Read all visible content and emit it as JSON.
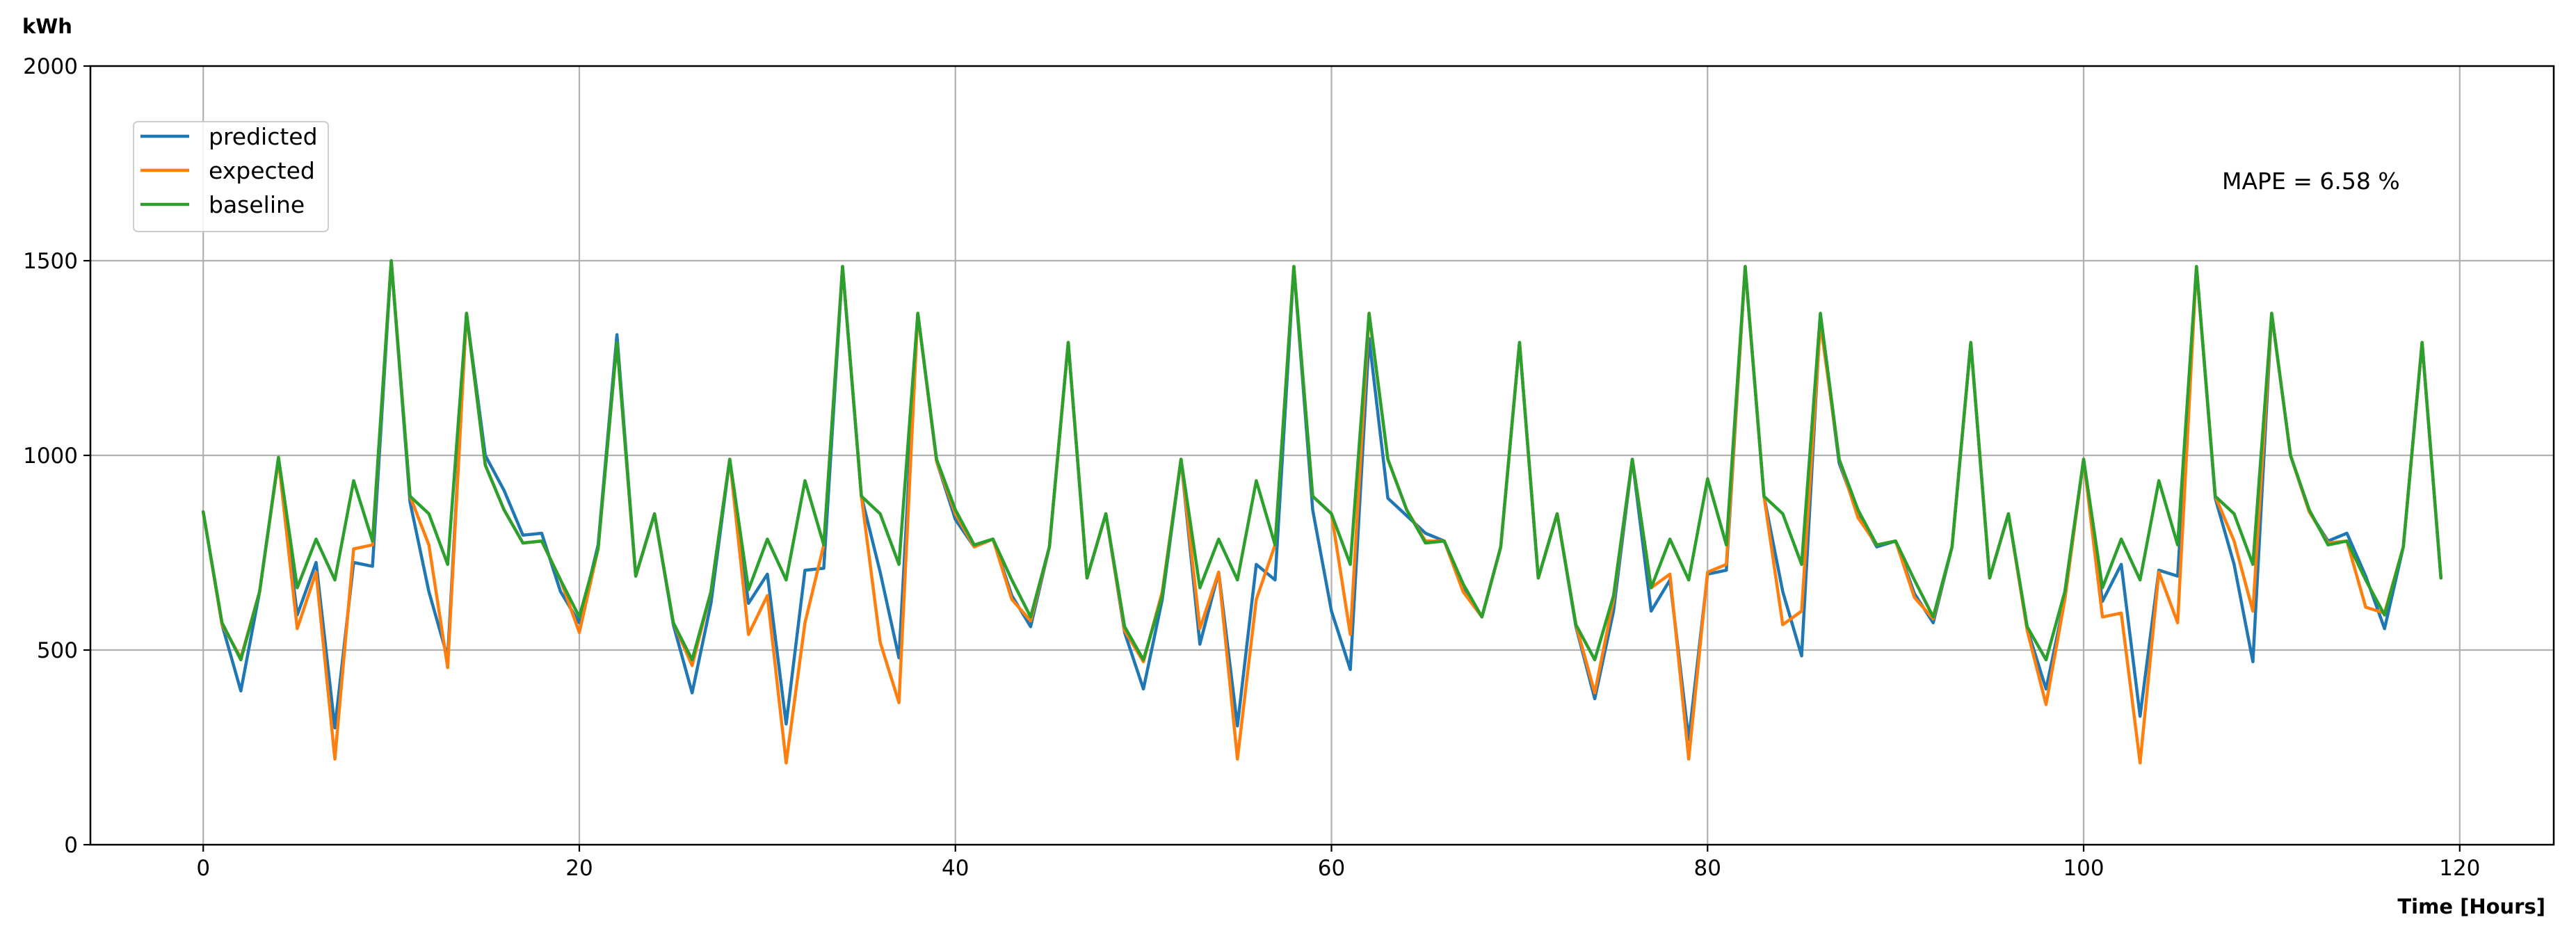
{
  "chart_data": {
    "type": "line",
    "ylabel": "kWh",
    "xlabel": "Time [Hours]",
    "xlim": [
      -6,
      125
    ],
    "ylim": [
      0,
      2000
    ],
    "x_ticks": [
      0,
      20,
      40,
      60,
      80,
      100,
      120
    ],
    "y_ticks": [
      0,
      500,
      1000,
      1500,
      2000
    ],
    "grid": true,
    "legend_position": "top-left",
    "annotation": "MAPE = 6.58 %",
    "series": [
      {
        "name": "predicted",
        "color": "#1f77b4",
        "values": [
          855,
          565,
          395,
          650,
          990,
          590,
          725,
          300,
          725,
          715,
          1500,
          880,
          650,
          480,
          1365,
          1000,
          910,
          795,
          800,
          650,
          570,
          770,
          1310,
          690,
          850,
          565,
          390,
          620,
          990,
          620,
          695,
          310,
          705,
          710,
          1485,
          895,
          700,
          480,
          1365,
          985,
          835,
          765,
          785,
          640,
          560,
          765,
          1290,
          685,
          850,
          545,
          400,
          630,
          990,
          515,
          700,
          305,
          720,
          680,
          1485,
          860,
          600,
          450,
          1300,
          890,
          845,
          800,
          780,
          660,
          585,
          765,
          1290,
          685,
          850,
          560,
          375,
          600,
          990,
          600,
          680,
          270,
          695,
          705,
          1485,
          895,
          650,
          485,
          1355,
          980,
          850,
          765,
          780,
          645,
          570,
          765,
          1290,
          685,
          850,
          555,
          400,
          630,
          990,
          625,
          720,
          330,
          705,
          690,
          1485,
          890,
          720,
          470,
          1365,
          1000,
          855,
          780,
          800,
          690,
          555,
          765,
          1290,
          685
        ]
      },
      {
        "name": "expected",
        "color": "#ff7f0e",
        "values": [
          855,
          565,
          480,
          650,
          990,
          555,
          700,
          220,
          760,
          770,
          1500,
          895,
          770,
          455,
          1365,
          975,
          860,
          775,
          780,
          680,
          545,
          760,
          1290,
          690,
          850,
          570,
          460,
          650,
          990,
          540,
          640,
          210,
          570,
          770,
          1485,
          895,
          520,
          365,
          1365,
          985,
          850,
          765,
          785,
          630,
          575,
          765,
          1290,
          685,
          850,
          550,
          470,
          650,
          990,
          555,
          700,
          220,
          630,
          770,
          1485,
          895,
          850,
          540,
          1365,
          990,
          860,
          780,
          780,
          650,
          585,
          765,
          1290,
          685,
          850,
          565,
          390,
          630,
          990,
          660,
          695,
          220,
          700,
          720,
          1485,
          895,
          565,
          600,
          1340,
          990,
          840,
          770,
          780,
          635,
          580,
          765,
          1290,
          685,
          850,
          550,
          360,
          630,
          990,
          585,
          595,
          210,
          700,
          570,
          1485,
          895,
          780,
          600,
          1365,
          1000,
          855,
          775,
          780,
          610,
          595,
          765,
          1290,
          685
        ]
      },
      {
        "name": "baseline",
        "color": "#2ca02c",
        "values": [
          855,
          570,
          475,
          650,
          995,
          660,
          785,
          680,
          935,
          780,
          1500,
          895,
          850,
          720,
          1365,
          975,
          860,
          775,
          780,
          680,
          585,
          760,
          1290,
          690,
          850,
          570,
          475,
          650,
          990,
          655,
          785,
          680,
          935,
          770,
          1485,
          895,
          850,
          720,
          1365,
          990,
          860,
          770,
          785,
          680,
          585,
          765,
          1290,
          685,
          850,
          560,
          475,
          640,
          990,
          660,
          785,
          680,
          935,
          770,
          1485,
          895,
          850,
          720,
          1365,
          990,
          860,
          775,
          780,
          670,
          585,
          765,
          1290,
          685,
          850,
          565,
          475,
          640,
          990,
          660,
          785,
          680,
          940,
          770,
          1485,
          895,
          850,
          720,
          1365,
          990,
          860,
          770,
          780,
          680,
          585,
          765,
          1290,
          685,
          850,
          560,
          475,
          650,
          990,
          660,
          785,
          680,
          935,
          770,
          1485,
          895,
          850,
          720,
          1365,
          1000,
          860,
          770,
          780,
          680,
          590,
          765,
          1290,
          685
        ]
      }
    ]
  }
}
